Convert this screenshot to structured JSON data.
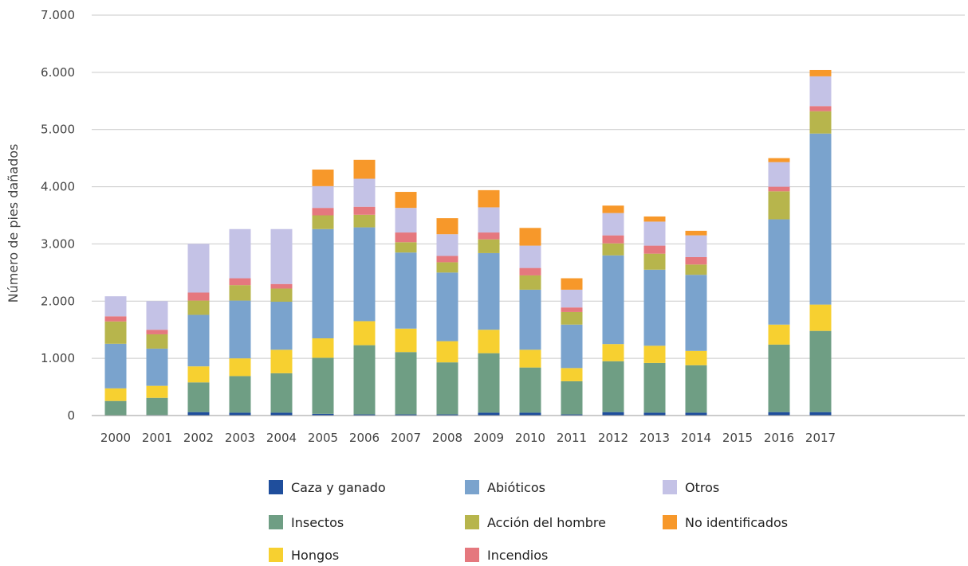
{
  "chart_data": {
    "type": "bar",
    "stacked": true,
    "ylabel": "Número de pies dañados",
    "ylim": [
      0,
      7000
    ],
    "yticks": [
      "0",
      "1.000",
      "2.000",
      "3.000",
      "4.000",
      "5.000",
      "6.000",
      "7.000"
    ],
    "ytick_values": [
      0,
      1000,
      2000,
      3000,
      4000,
      5000,
      6000,
      7000
    ],
    "grid": true,
    "legend_position": "bottom",
    "categories": [
      "2000",
      "2001",
      "2002",
      "2003",
      "2004",
      "2005",
      "2006",
      "2007",
      "2008",
      "2009",
      "2010",
      "2011",
      "2012",
      "2013",
      "2014",
      "2015",
      "2016",
      "2017"
    ],
    "series": [
      {
        "name": "Caza y ganado",
        "color": "#1f4e9c",
        "values": [
          5,
          10,
          60,
          50,
          50,
          30,
          20,
          20,
          20,
          50,
          50,
          20,
          60,
          50,
          50,
          0,
          60,
          60
        ]
      },
      {
        "name": "Insectos",
        "color": "#6f9e84",
        "values": [
          250,
          300,
          520,
          640,
          690,
          980,
          1210,
          1090,
          910,
          1040,
          790,
          580,
          890,
          870,
          830,
          0,
          1180,
          1420
        ]
      },
      {
        "name": "Hongos",
        "color": "#f7d030",
        "values": [
          220,
          210,
          280,
          310,
          410,
          340,
          420,
          410,
          370,
          410,
          310,
          230,
          300,
          300,
          250,
          0,
          350,
          460
        ]
      },
      {
        "name": "Abióticos",
        "color": "#7aa3cd",
        "values": [
          780,
          650,
          900,
          1010,
          840,
          1910,
          1640,
          1330,
          1200,
          1340,
          1050,
          760,
          1550,
          1330,
          1330,
          0,
          1840,
          2990
        ]
      },
      {
        "name": "Acción del hombre",
        "color": "#b7b54c",
        "values": [
          390,
          250,
          250,
          270,
          230,
          240,
          220,
          180,
          180,
          240,
          250,
          220,
          210,
          280,
          180,
          0,
          490,
          390
        ]
      },
      {
        "name": "Incendios",
        "color": "#e5787e",
        "values": [
          90,
          80,
          140,
          120,
          80,
          130,
          140,
          170,
          110,
          120,
          130,
          80,
          140,
          140,
          130,
          0,
          80,
          90
        ]
      },
      {
        "name": "Otros",
        "color": "#c4c2e6",
        "values": [
          350,
          500,
          850,
          860,
          960,
          380,
          490,
          430,
          380,
          440,
          390,
          310,
          390,
          420,
          380,
          0,
          430,
          520
        ]
      },
      {
        "name": "No identificados",
        "color": "#f7982a",
        "values": [
          0,
          0,
          0,
          0,
          0,
          290,
          330,
          280,
          280,
          300,
          310,
          200,
          130,
          90,
          80,
          0,
          70,
          110
        ]
      }
    ]
  }
}
